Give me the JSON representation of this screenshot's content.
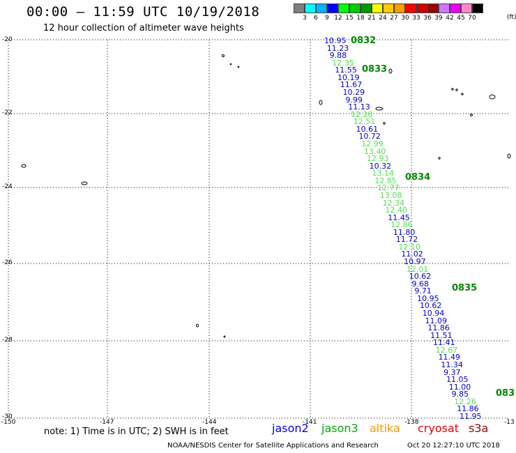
{
  "title": "00:00 – 11:59 UTC 10/19/2018",
  "subtitle": "12 hour collection of altimeter wave heights",
  "legend": {
    "colors": [
      "#7f7f7f",
      "#00ffff",
      "#00b4ff",
      "#0000ff",
      "#00ff00",
      "#00cc00",
      "#009900",
      "#ffff00",
      "#ffcc00",
      "#ff9900",
      "#ff0000",
      "#cc0000",
      "#990000",
      "#cc77ff",
      "#ee00ee",
      "#ff88cc",
      "#000000"
    ],
    "ticks": [
      "3",
      "6",
      "9",
      "12",
      "15",
      "18",
      "21",
      "24",
      "27",
      "30",
      "33",
      "36",
      "39",
      "42",
      "45",
      "70"
    ],
    "unit": "(ft)"
  },
  "axes": {
    "lat_labels": [
      "-20",
      "-22",
      "-24",
      "-26",
      "-28",
      "-30"
    ],
    "lon_labels": [
      "-150",
      "-147",
      "-144",
      "-141",
      "-138",
      "-13"
    ]
  },
  "pass_labels": [
    "0832",
    "0833",
    "0834",
    "0835",
    "083"
  ],
  "points": [
    {
      "v": "10.95",
      "c": "#0000cc"
    },
    {
      "v": "11.23",
      "c": "#0000cc"
    },
    {
      "v": "9.88",
      "c": "#0000cc"
    },
    {
      "v": "12.35",
      "c": "#55dd55"
    },
    {
      "v": "11.55",
      "c": "#0000cc"
    },
    {
      "v": "10.19",
      "c": "#0000cc"
    },
    {
      "v": "11.67",
      "c": "#0000cc"
    },
    {
      "v": "10.29",
      "c": "#0000cc"
    },
    {
      "v": "9.99",
      "c": "#0000cc"
    },
    {
      "v": "11.13",
      "c": "#0000cc"
    },
    {
      "v": "12.28",
      "c": "#55dd55"
    },
    {
      "v": "12.51",
      "c": "#55dd55"
    },
    {
      "v": "10.61",
      "c": "#0000cc"
    },
    {
      "v": "10.72",
      "c": "#0000cc"
    },
    {
      "v": "12.99",
      "c": "#55dd55"
    },
    {
      "v": "13.40",
      "c": "#55dd55"
    },
    {
      "v": "12.93",
      "c": "#55dd55"
    },
    {
      "v": "10.32",
      "c": "#0000cc"
    },
    {
      "v": "13.14",
      "c": "#55dd55"
    },
    {
      "v": "12.85",
      "c": "#55dd55"
    },
    {
      "v": "12.77",
      "c": "#55dd55"
    },
    {
      "v": "13.08",
      "c": "#55dd55"
    },
    {
      "v": "12.34",
      "c": "#55dd55"
    },
    {
      "v": "12.40",
      "c": "#55dd55"
    },
    {
      "v": "11.45",
      "c": "#0000cc"
    },
    {
      "v": "12.86",
      "c": "#55dd55"
    },
    {
      "v": "11.80",
      "c": "#0000cc"
    },
    {
      "v": "11.72",
      "c": "#0000cc"
    },
    {
      "v": "12.10",
      "c": "#55dd55"
    },
    {
      "v": "11.02",
      "c": "#0000cc"
    },
    {
      "v": "10.97",
      "c": "#0000cc"
    },
    {
      "v": "12.01",
      "c": "#55dd55"
    },
    {
      "v": "10.62",
      "c": "#0000cc"
    },
    {
      "v": "9.68",
      "c": "#0000cc"
    },
    {
      "v": "9.71",
      "c": "#0000cc"
    },
    {
      "v": "10.95",
      "c": "#0000cc"
    },
    {
      "v": "10.62",
      "c": "#0000cc"
    },
    {
      "v": "10.94",
      "c": "#0000cc"
    },
    {
      "v": "11.09",
      "c": "#0000cc"
    },
    {
      "v": "11.86",
      "c": "#0000cc"
    },
    {
      "v": "11.51",
      "c": "#0000cc"
    },
    {
      "v": "11.41",
      "c": "#0000cc"
    },
    {
      "v": "12.67",
      "c": "#55dd55"
    },
    {
      "v": "11.49",
      "c": "#0000cc"
    },
    {
      "v": "11.34",
      "c": "#0000cc"
    },
    {
      "v": "9.37",
      "c": "#0000cc"
    },
    {
      "v": "11.05",
      "c": "#0000cc"
    },
    {
      "v": "11.00",
      "c": "#0000cc"
    },
    {
      "v": "9.85",
      "c": "#0000cc"
    },
    {
      "v": "12.26",
      "c": "#55dd55"
    },
    {
      "v": "11.86",
      "c": "#0000cc"
    },
    {
      "v": "11.95",
      "c": "#0000cc"
    }
  ],
  "note": "note:  1) Time is in UTC;  2) SWH is in feet",
  "satellites": [
    {
      "name": "jason2",
      "color": "#0000ee"
    },
    {
      "name": "jason3",
      "color": "#00aa00"
    },
    {
      "name": "altika",
      "color": "#ff9900"
    },
    {
      "name": "cryosat",
      "color": "#ee0000"
    },
    {
      "name": "s3a",
      "color": "#990000"
    }
  ],
  "footer": "NOAA/NESDIS Center for Satellite Applications and Research",
  "footer_time": "Oct 20 12:27:10 UTC 2018"
}
